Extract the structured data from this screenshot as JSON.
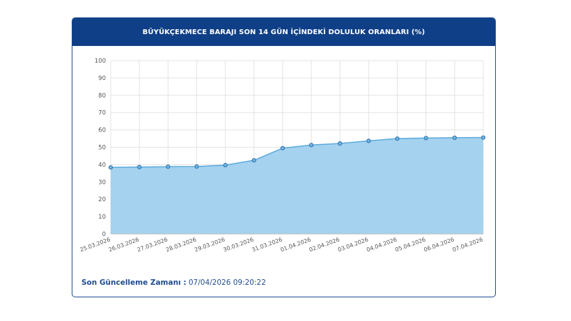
{
  "card": {
    "title": "BÜYÜKÇEKMECE BARAJI SON 14 GÜN İÇİNDEKİ DOLULUK ORANLARI (%)",
    "updated_label": "Son Güncelleme Zamanı :",
    "updated_value": "07/04/2026 09:20:22"
  },
  "chart_data": {
    "type": "area",
    "title": "BÜYÜKÇEKMECE BARAJI SON 14 GÜN İÇİNDEKİ DOLULUK ORANLARI (%)",
    "xlabel": "",
    "ylabel": "",
    "categories": [
      "25.03.2026",
      "26.03.2026",
      "27.03.2026",
      "28.03.2026",
      "29.03.2026",
      "30.03.2026",
      "31.03.2026",
      "01.04.2026",
      "02.04.2026",
      "03.04.2026",
      "04.04.2026",
      "05.04.2026",
      "06.04.2026",
      "07.04.2026"
    ],
    "values": [
      38.4,
      38.6,
      38.8,
      38.9,
      39.7,
      42.5,
      49.5,
      51.3,
      52.2,
      53.7,
      55.0,
      55.3,
      55.5,
      55.6
    ],
    "ylim": [
      0,
      100
    ],
    "yticks": [
      0,
      10,
      20,
      30,
      40,
      50,
      60,
      70,
      80,
      90,
      100
    ],
    "grid": true,
    "colors": {
      "fill": "#9fd0ee",
      "line": "#5aa9db",
      "marker": "#3b8dc9",
      "header": "#0f3f86"
    }
  }
}
